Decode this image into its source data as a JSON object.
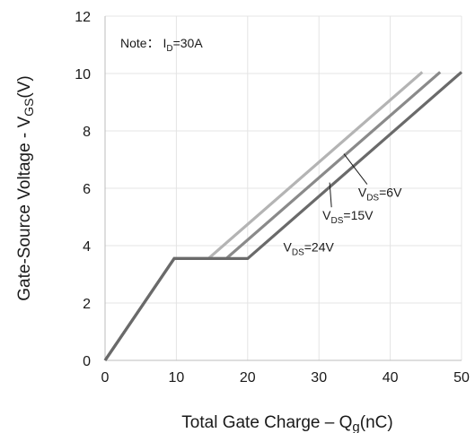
{
  "chart_data": {
    "type": "line",
    "title": "",
    "xlabel": "Total Gate Charge  –  Q",
    "xlabel_sub": "g",
    "xlabel_unit": "(nC)",
    "ylabel": "Gate-Source Voltage - V",
    "ylabel_sub": "GS",
    "ylabel_unit": "(V)",
    "xlim": [
      0,
      50
    ],
    "ylim": [
      0,
      12
    ],
    "x_ticks": [
      0,
      10,
      20,
      30,
      40,
      50
    ],
    "y_ticks": [
      0,
      2,
      4,
      6,
      8,
      10,
      12
    ],
    "grid": true,
    "note": {
      "prefix": "Note： I",
      "sub": "D",
      "suffix": "=30A"
    },
    "series": [
      {
        "name": "6V",
        "color": "#b4b4b4",
        "points": [
          [
            0,
            0
          ],
          [
            9.7,
            3.55
          ],
          [
            14.5,
            3.55
          ],
          [
            44.5,
            10.05
          ]
        ]
      },
      {
        "name": "15V",
        "color": "#8a8a8a",
        "points": [
          [
            0,
            0
          ],
          [
            9.7,
            3.55
          ],
          [
            17,
            3.55
          ],
          [
            47,
            10.05
          ]
        ]
      },
      {
        "name": "24V",
        "color": "#6a6a6a",
        "points": [
          [
            0,
            0
          ],
          [
            9.7,
            3.55
          ],
          [
            20,
            3.55
          ],
          [
            50,
            10.05
          ]
        ]
      }
    ],
    "annotations": [
      {
        "label_prefix": "V",
        "label_sub": "DS",
        "label_suffix": "=6V",
        "text_at": [
          35.5,
          5.7
        ],
        "arrow_to": [
          33.5,
          7.2
        ]
      },
      {
        "label_prefix": "V",
        "label_sub": "DS",
        "label_suffix": "=15V",
        "text_at": [
          30.5,
          4.9
        ],
        "arrow_to": [
          31.5,
          6.2
        ]
      },
      {
        "label_prefix": "V",
        "label_sub": "DS",
        "label_suffix": "=24V",
        "text_at": [
          25,
          3.8
        ],
        "arrow_to": null
      }
    ]
  }
}
